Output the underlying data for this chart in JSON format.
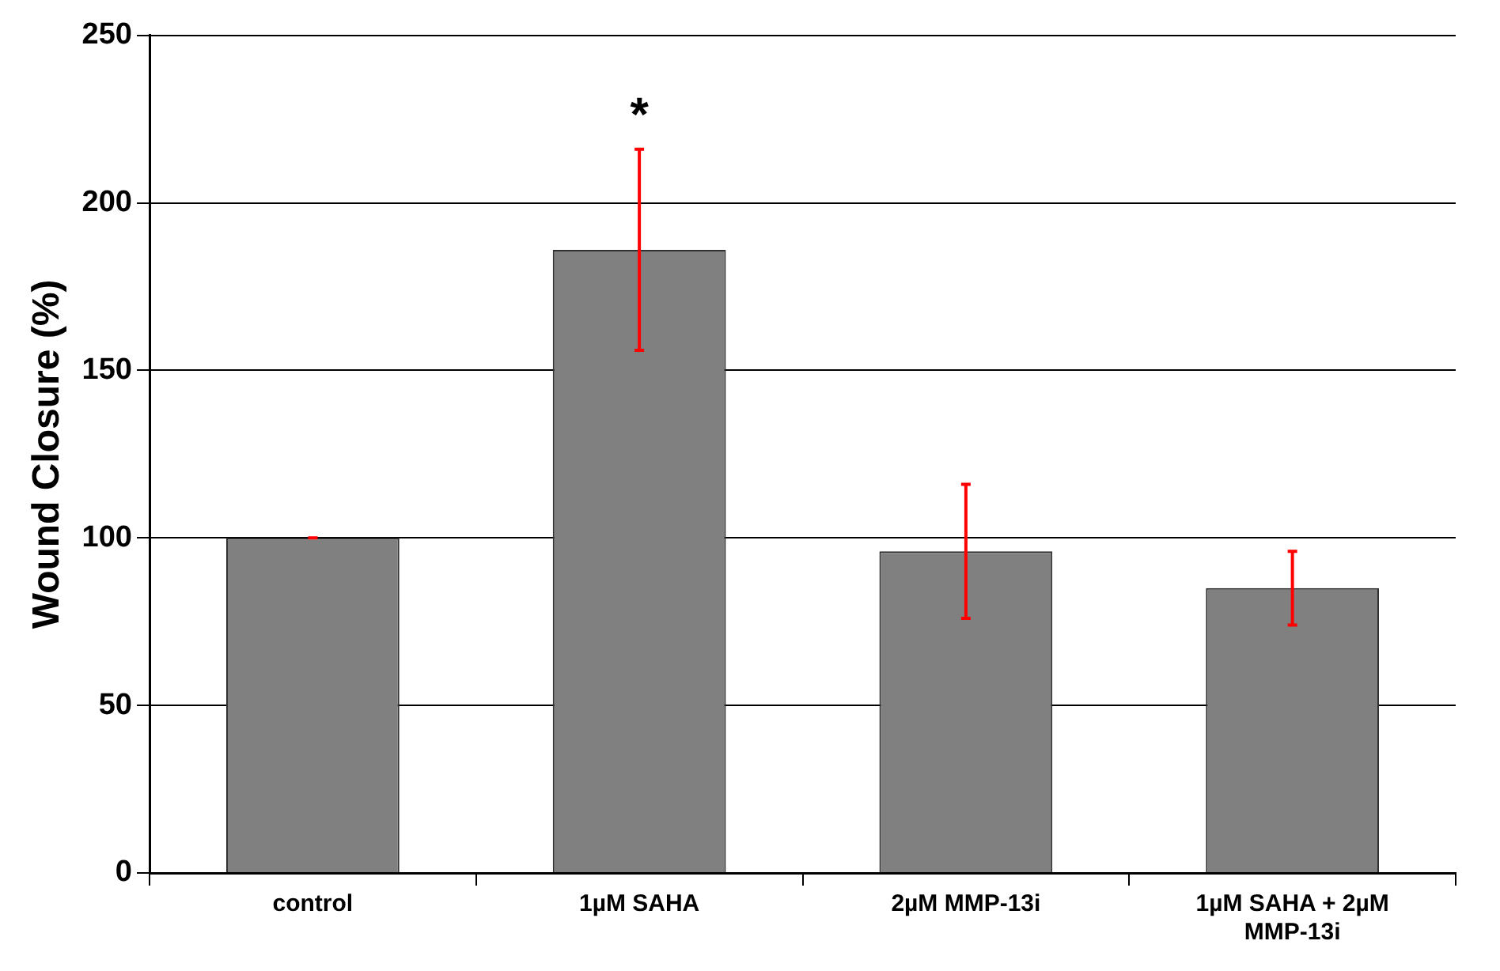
{
  "chart_data": {
    "type": "bar",
    "ylabel": "Wound Closure (%)",
    "categories": [
      "control",
      "1µM SAHA",
      "2µM MMP-13i",
      "1µM SAHA + 2µM MMP-13i"
    ],
    "values": [
      100,
      186,
      96,
      85
    ],
    "color": "#808080",
    "errors": [
      0,
      30,
      20,
      11
    ],
    "ylim": [
      0,
      250
    ],
    "yticks": [
      0,
      50,
      100,
      150,
      200,
      250
    ],
    "grid": "y",
    "legend": false,
    "annotations": [
      {
        "text": "*",
        "x": "1µM SAHA",
        "y": 216
      }
    ]
  }
}
